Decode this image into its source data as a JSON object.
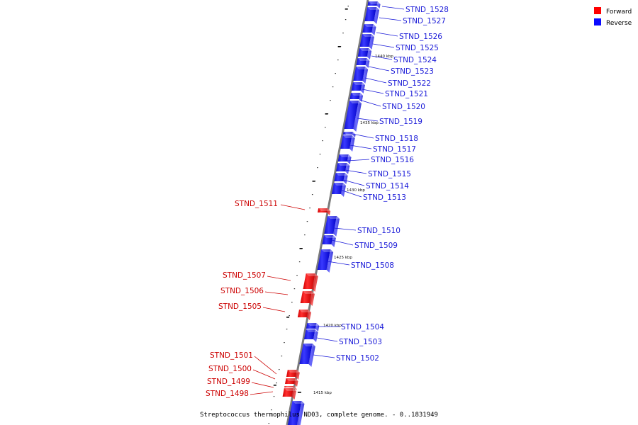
{
  "legend": {
    "forward_label": "Forward",
    "reverse_label": "Reverse",
    "forward_color": "#ff0000",
    "reverse_color": "#0a0aff"
  },
  "caption": "Streptococcus thermophilus ND03, complete genome. - 0..1831949",
  "kbp_ticks": [
    "1440 kbp",
    "1435 kbp",
    "1430 kbp",
    "1425 kbp",
    "1420 kbp",
    "1415 kbp"
  ],
  "genes": {
    "reverse": [
      "STND_1528",
      "STND_1527",
      "STND_1526",
      "STND_1525",
      "STND_1524",
      "STND_1523",
      "STND_1522",
      "STND_1521",
      "STND_1520",
      "STND_1519",
      "STND_1518",
      "STND_1517",
      "STND_1516",
      "STND_1515",
      "STND_1514",
      "STND_1513",
      "STND_1510",
      "STND_1509",
      "STND_1508",
      "STND_1504",
      "STND_1503",
      "STND_1502"
    ],
    "forward": [
      "STND_1511",
      "STND_1507",
      "STND_1506",
      "STND_1505",
      "STND_1501",
      "STND_1500",
      "STND_1499",
      "STND_1498"
    ]
  }
}
